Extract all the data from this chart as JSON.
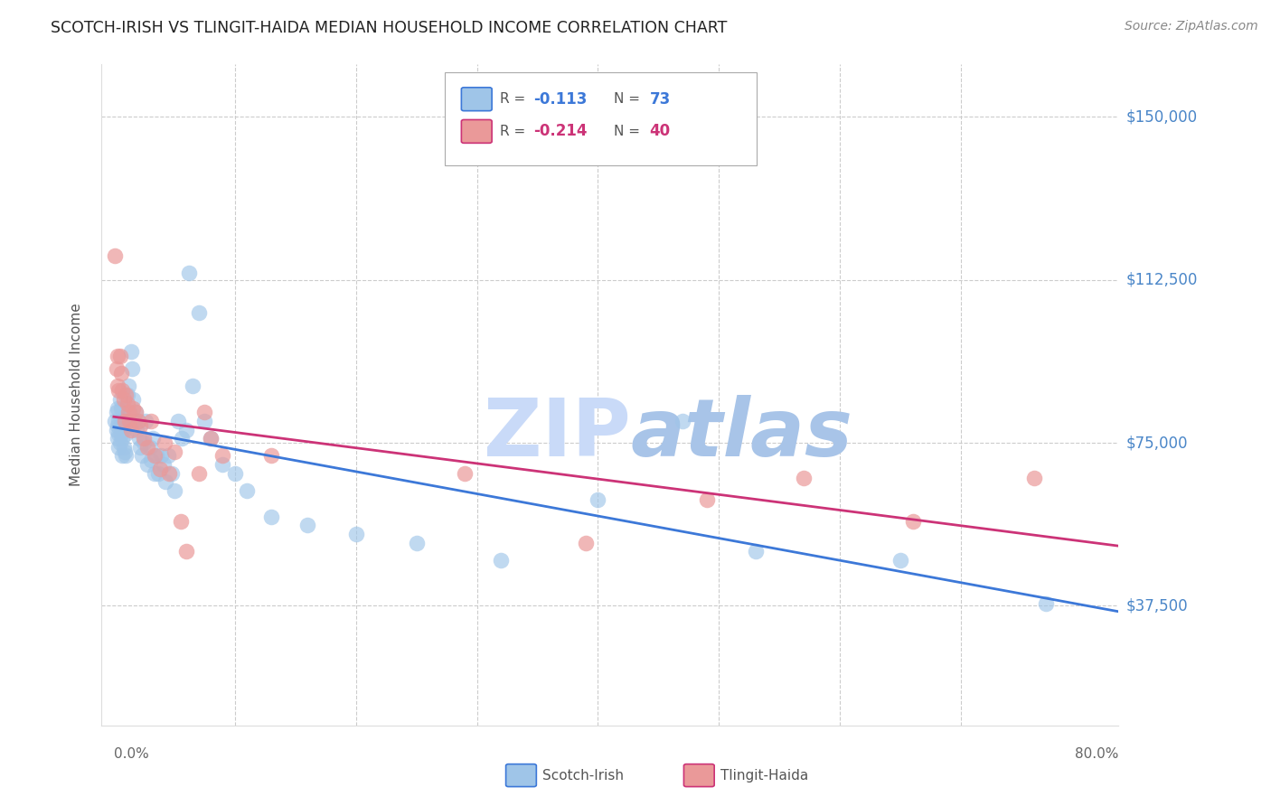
{
  "title": "SCOTCH-IRISH VS TLINGIT-HAIDA MEDIAN HOUSEHOLD INCOME CORRELATION CHART",
  "source": "Source: ZipAtlas.com",
  "ylabel": "Median Household Income",
  "ytick_labels": [
    "$37,500",
    "$75,000",
    "$112,500",
    "$150,000"
  ],
  "ytick_values": [
    37500,
    75000,
    112500,
    150000
  ],
  "ymin": 10000,
  "ymax": 162000,
  "xmin": -0.01,
  "xmax": 0.83,
  "blue_color": "#9fc5e8",
  "pink_color": "#ea9999",
  "blue_line_color": "#3c78d8",
  "pink_line_color": "#cc3377",
  "axis_label_color": "#4a86c8",
  "watermark": "ZIPatlas",
  "scotch_irish_x": [
    0.001,
    0.002,
    0.002,
    0.003,
    0.003,
    0.003,
    0.004,
    0.004,
    0.004,
    0.005,
    0.005,
    0.005,
    0.006,
    0.006,
    0.007,
    0.007,
    0.007,
    0.008,
    0.008,
    0.009,
    0.009,
    0.01,
    0.01,
    0.011,
    0.011,
    0.012,
    0.013,
    0.014,
    0.015,
    0.016,
    0.017,
    0.018,
    0.019,
    0.02,
    0.021,
    0.022,
    0.023,
    0.025,
    0.026,
    0.028,
    0.03,
    0.031,
    0.032,
    0.034,
    0.035,
    0.037,
    0.039,
    0.041,
    0.043,
    0.045,
    0.048,
    0.05,
    0.053,
    0.056,
    0.06,
    0.062,
    0.065,
    0.07,
    0.075,
    0.08,
    0.09,
    0.1,
    0.11,
    0.13,
    0.16,
    0.2,
    0.25,
    0.32,
    0.4,
    0.47,
    0.53,
    0.65,
    0.77
  ],
  "scotch_irish_y": [
    80000,
    82000,
    78000,
    83000,
    79000,
    76000,
    80000,
    77000,
    74000,
    85000,
    79000,
    75000,
    83000,
    77000,
    80000,
    76000,
    72000,
    78000,
    74000,
    80000,
    73000,
    77000,
    72000,
    86000,
    79000,
    88000,
    82000,
    96000,
    92000,
    85000,
    80000,
    82000,
    78000,
    80000,
    76000,
    74000,
    72000,
    75000,
    80000,
    70000,
    74000,
    71000,
    76000,
    68000,
    72000,
    68000,
    72000,
    70000,
    66000,
    72000,
    68000,
    64000,
    80000,
    76000,
    78000,
    114000,
    88000,
    105000,
    80000,
    76000,
    70000,
    68000,
    64000,
    58000,
    56000,
    54000,
    52000,
    48000,
    62000,
    80000,
    50000,
    48000,
    38000
  ],
  "tlingit_haida_x": [
    0.001,
    0.002,
    0.003,
    0.003,
    0.004,
    0.005,
    0.006,
    0.007,
    0.008,
    0.009,
    0.01,
    0.011,
    0.012,
    0.013,
    0.014,
    0.016,
    0.018,
    0.02,
    0.022,
    0.025,
    0.028,
    0.031,
    0.034,
    0.038,
    0.042,
    0.046,
    0.05,
    0.055,
    0.06,
    0.07,
    0.075,
    0.08,
    0.09,
    0.13,
    0.29,
    0.39,
    0.49,
    0.57,
    0.66,
    0.76
  ],
  "tlingit_haida_y": [
    118000,
    92000,
    95000,
    88000,
    87000,
    95000,
    91000,
    87000,
    85000,
    80000,
    86000,
    84000,
    82000,
    80000,
    78000,
    83000,
    82000,
    80000,
    79000,
    76000,
    74000,
    80000,
    72000,
    69000,
    75000,
    68000,
    73000,
    57000,
    50000,
    68000,
    82000,
    76000,
    72000,
    72000,
    68000,
    52000,
    62000,
    67000,
    57000,
    67000
  ]
}
